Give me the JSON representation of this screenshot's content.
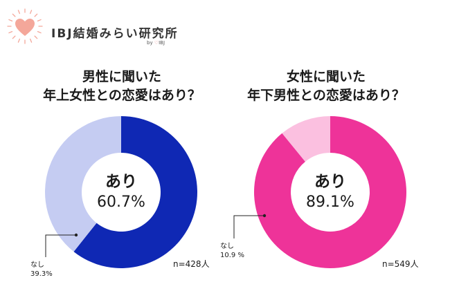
{
  "logo": {
    "name": "IBJ結婚みらい研究所",
    "byline_by": "by",
    "byline_org": "IBJ",
    "accent": "#f4a79a"
  },
  "chart_data": [
    {
      "type": "pie",
      "title_lines": [
        "男性に聞いた",
        "年上女性との恋愛はあり？"
      ],
      "categories": [
        "あり",
        "なし"
      ],
      "values": [
        60.7,
        39.3
      ],
      "value_labels": [
        "60.7%",
        "39.3%"
      ],
      "colors": [
        "#0f28b4",
        "#c5ccf2"
      ],
      "n_label": "n=428人"
    },
    {
      "type": "pie",
      "title_lines": [
        "女性に聞いた",
        "年下男性との恋愛はあり？"
      ],
      "categories": [
        "あり",
        "なし"
      ],
      "values": [
        89.1,
        10.9
      ],
      "value_labels": [
        "89.1%",
        "10.9 %"
      ],
      "colors": [
        "#ee3399",
        "#fbc0e0"
      ],
      "n_label": "n=549人"
    }
  ]
}
